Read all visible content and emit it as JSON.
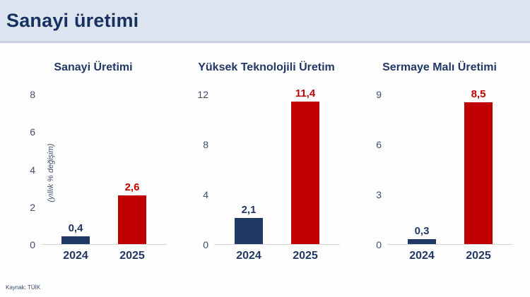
{
  "header": {
    "title": "Sanayi üretimi"
  },
  "footer": {
    "source": "Kaynak: TÜİK"
  },
  "colors": {
    "navy": "#1f3864",
    "red": "#c00000",
    "header_bg": "#dce4f0",
    "axis_line": "#d6d6d6",
    "tick_text": "#3e4c6e"
  },
  "chart_data": [
    {
      "type": "bar",
      "title": "Sanayi Üretimi",
      "categories": [
        "2024",
        "2025"
      ],
      "values": [
        0.4,
        2.6
      ],
      "value_labels": [
        "0,4",
        "2,6"
      ],
      "bar_colors": [
        "navy",
        "red"
      ],
      "ylabel": "(yıllık % değişim)",
      "ylim": [
        0,
        8
      ],
      "yticks": [
        0,
        2,
        4,
        6,
        8
      ],
      "grid": false,
      "legend": false
    },
    {
      "type": "bar",
      "title": "Yüksek Teknolojili Üretim",
      "categories": [
        "2024",
        "2025"
      ],
      "values": [
        2.1,
        11.4
      ],
      "value_labels": [
        "2,1",
        "11,4"
      ],
      "bar_colors": [
        "navy",
        "red"
      ],
      "ylabel": "",
      "ylim": [
        0,
        12
      ],
      "yticks": [
        0,
        4,
        8,
        12
      ],
      "grid": false,
      "legend": false
    },
    {
      "type": "bar",
      "title": "Sermaye Malı Üretimi",
      "categories": [
        "2024",
        "2025"
      ],
      "values": [
        0.3,
        8.5
      ],
      "value_labels": [
        "0,3",
        "8,5"
      ],
      "bar_colors": [
        "navy",
        "red"
      ],
      "ylabel": "",
      "ylim": [
        0,
        9
      ],
      "yticks": [
        0,
        3,
        6,
        9
      ],
      "grid": false,
      "legend": false
    }
  ]
}
